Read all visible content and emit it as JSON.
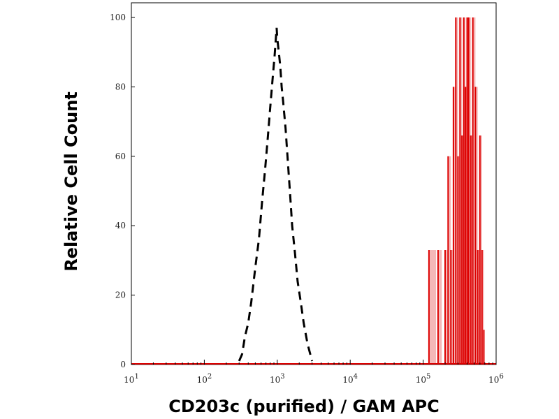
{
  "chart_data": {
    "type": "histogram-overlay",
    "xlabel": "CD203c (purified) / GAM APC",
    "ylabel": "Relative Cell Count",
    "xscale": "log",
    "xlim": [
      10,
      1000000
    ],
    "ylim": [
      0,
      100
    ],
    "x_ticks": [
      {
        "value": 10,
        "base": "10",
        "exp": "1"
      },
      {
        "value": 100,
        "base": "10",
        "exp": "2"
      },
      {
        "value": 1000,
        "base": "10",
        "exp": "3"
      },
      {
        "value": 10000,
        "base": "10",
        "exp": "4"
      },
      {
        "value": 100000,
        "base": "10",
        "exp": "5"
      },
      {
        "value": 1000000,
        "base": "10",
        "exp": "6"
      }
    ],
    "y_ticks": [
      0,
      20,
      40,
      60,
      80,
      100
    ],
    "grid": false,
    "series": [
      {
        "style": "dashed",
        "color": "#000000",
        "fill": "none",
        "points": [
          [
            300,
            1
          ],
          [
            330,
            3
          ],
          [
            360,
            8
          ],
          [
            400,
            12
          ],
          [
            440,
            18
          ],
          [
            500,
            28
          ],
          [
            560,
            36
          ],
          [
            620,
            47
          ],
          [
            680,
            56
          ],
          [
            740,
            65
          ],
          [
            800,
            74
          ],
          [
            860,
            82
          ],
          [
            920,
            89
          ],
          [
            980,
            97
          ],
          [
            1000,
            94
          ],
          [
            1050,
            90
          ],
          [
            1100,
            86
          ],
          [
            1150,
            80
          ],
          [
            1200,
            76
          ],
          [
            1300,
            68
          ],
          [
            1400,
            58
          ],
          [
            1500,
            49
          ],
          [
            1600,
            40
          ],
          [
            1750,
            32
          ],
          [
            1900,
            24
          ],
          [
            2100,
            18
          ],
          [
            2300,
            12
          ],
          [
            2600,
            6
          ],
          [
            3000,
            1
          ]
        ]
      },
      {
        "style": "solid",
        "color": "#dd0000",
        "fill": "#f4b8b8",
        "bins": [
          [
            120000,
            33
          ],
          [
            150000,
            0
          ],
          [
            160000,
            33
          ],
          [
            180000,
            0
          ],
          [
            200000,
            33
          ],
          [
            220000,
            60
          ],
          [
            240000,
            33
          ],
          [
            260000,
            80
          ],
          [
            280000,
            100
          ],
          [
            300000,
            60
          ],
          [
            320000,
            100
          ],
          [
            340000,
            66
          ],
          [
            360000,
            100
          ],
          [
            380000,
            80
          ],
          [
            400000,
            100
          ],
          [
            420000,
            100
          ],
          [
            450000,
            66
          ],
          [
            480000,
            100
          ],
          [
            520000,
            80
          ],
          [
            560000,
            33
          ],
          [
            600000,
            66
          ],
          [
            640000,
            33
          ],
          [
            680000,
            10
          ]
        ]
      }
    ]
  }
}
